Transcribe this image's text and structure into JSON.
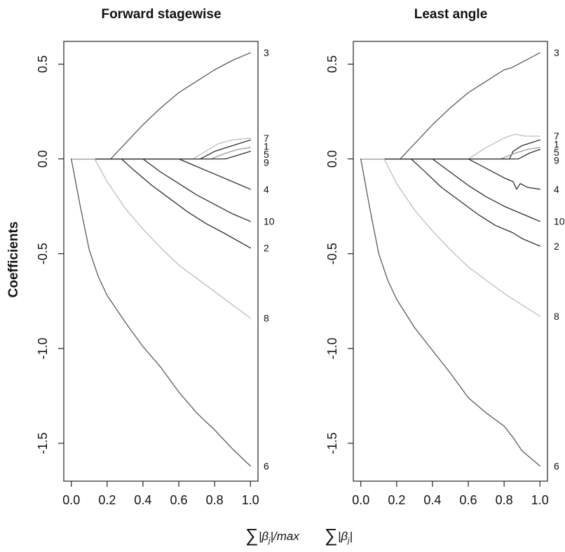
{
  "colors": {
    "dark": "#2e2e2e",
    "mid": "#5a5a5a",
    "light": "#9a9a9a",
    "lighter": "#bdbdbd"
  },
  "figure": {
    "ylabel": "Coefficients",
    "xlabel": "∑|β_j|/max ∑|β_j|"
  },
  "chart_data": [
    {
      "type": "line",
      "title": "Forward stagewise",
      "xlabel": "",
      "ylabel": "Coefficients",
      "xlim": [
        0.0,
        1.0
      ],
      "ylim": [
        -1.7,
        0.62
      ],
      "x_ticks": [
        "0.0",
        "0.2",
        "0.4",
        "0.6",
        "0.8",
        "1.0"
      ],
      "y_ticks": [
        "-1.5",
        "-1.0",
        "-0.5",
        "0.0",
        "0.5"
      ],
      "series": [
        {
          "name": "3",
          "color": "mid",
          "points": [
            [
              0,
              0
            ],
            [
              0.22,
              0
            ],
            [
              0.3,
              0.08
            ],
            [
              0.4,
              0.18
            ],
            [
              0.5,
              0.27
            ],
            [
              0.6,
              0.35
            ],
            [
              0.7,
              0.41
            ],
            [
              0.8,
              0.47
            ],
            [
              0.9,
              0.52
            ],
            [
              1.0,
              0.56
            ]
          ]
        },
        {
          "name": "7",
          "color": "lighter",
          "points": [
            [
              0,
              0
            ],
            [
              0.68,
              0
            ],
            [
              0.75,
              0.04
            ],
            [
              0.82,
              0.08
            ],
            [
              0.9,
              0.1
            ],
            [
              1.0,
              0.11
            ]
          ]
        },
        {
          "name": "1",
          "color": "dark",
          "points": [
            [
              0,
              0
            ],
            [
              0.72,
              0
            ],
            [
              0.8,
              0.04
            ],
            [
              0.9,
              0.07
            ],
            [
              1.0,
              0.1
            ]
          ]
        },
        {
          "name": "5",
          "color": "light",
          "points": [
            [
              0,
              0
            ],
            [
              0.78,
              0
            ],
            [
              0.86,
              0.03
            ],
            [
              0.93,
              0.05
            ],
            [
              1.0,
              0.06
            ]
          ]
        },
        {
          "name": "9",
          "color": "dark",
          "points": [
            [
              0,
              0
            ],
            [
              0.86,
              0
            ],
            [
              0.93,
              0.02
            ],
            [
              1.0,
              0.04
            ]
          ]
        },
        {
          "name": "4",
          "color": "dark",
          "points": [
            [
              0,
              0
            ],
            [
              0.6,
              0
            ],
            [
              0.7,
              -0.04
            ],
            [
              0.8,
              -0.08
            ],
            [
              0.9,
              -0.12
            ],
            [
              1.0,
              -0.16
            ]
          ]
        },
        {
          "name": "10",
          "color": "dark",
          "points": [
            [
              0,
              0
            ],
            [
              0.4,
              0
            ],
            [
              0.5,
              -0.07
            ],
            [
              0.6,
              -0.13
            ],
            [
              0.7,
              -0.19
            ],
            [
              0.8,
              -0.24
            ],
            [
              0.9,
              -0.29
            ],
            [
              1.0,
              -0.33
            ]
          ]
        },
        {
          "name": "2",
          "color": "dark",
          "points": [
            [
              0,
              0
            ],
            [
              0.28,
              0
            ],
            [
              0.35,
              -0.06
            ],
            [
              0.45,
              -0.14
            ],
            [
              0.55,
              -0.21
            ],
            [
              0.65,
              -0.28
            ],
            [
              0.75,
              -0.34
            ],
            [
              0.85,
              -0.39
            ],
            [
              1.0,
              -0.47
            ]
          ]
        },
        {
          "name": "8",
          "color": "lighter",
          "points": [
            [
              0,
              0
            ],
            [
              0.13,
              0
            ],
            [
              0.2,
              -0.12
            ],
            [
              0.3,
              -0.26
            ],
            [
              0.4,
              -0.37
            ],
            [
              0.5,
              -0.47
            ],
            [
              0.6,
              -0.56
            ],
            [
              0.7,
              -0.63
            ],
            [
              0.8,
              -0.7
            ],
            [
              0.9,
              -0.77
            ],
            [
              1.0,
              -0.84
            ]
          ]
        },
        {
          "name": "6",
          "color": "mid",
          "points": [
            [
              0,
              0
            ],
            [
              0.05,
              -0.25
            ],
            [
              0.1,
              -0.48
            ],
            [
              0.15,
              -0.62
            ],
            [
              0.2,
              -0.72
            ],
            [
              0.3,
              -0.86
            ],
            [
              0.4,
              -0.99
            ],
            [
              0.5,
              -1.1
            ],
            [
              0.6,
              -1.23
            ],
            [
              0.7,
              -1.34
            ],
            [
              0.8,
              -1.43
            ],
            [
              0.9,
              -1.53
            ],
            [
              1.0,
              -1.62
            ]
          ]
        }
      ]
    },
    {
      "type": "line",
      "title": "Least angle",
      "xlabel": "",
      "ylabel": "",
      "xlim": [
        0.0,
        1.0
      ],
      "ylim": [
        -1.7,
        0.62
      ],
      "x_ticks": [
        "0.0",
        "0.2",
        "0.4",
        "0.6",
        "0.8",
        "1.0"
      ],
      "y_ticks": [
        "-1.5",
        "-1.0",
        "-0.5",
        "0.0",
        "0.5"
      ],
      "series": [
        {
          "name": "3",
          "color": "mid",
          "points": [
            [
              0,
              0
            ],
            [
              0.22,
              0
            ],
            [
              0.3,
              0.08
            ],
            [
              0.4,
              0.18
            ],
            [
              0.5,
              0.27
            ],
            [
              0.6,
              0.35
            ],
            [
              0.7,
              0.41
            ],
            [
              0.8,
              0.47
            ],
            [
              0.84,
              0.48
            ],
            [
              0.9,
              0.51
            ],
            [
              1.0,
              0.56
            ]
          ]
        },
        {
          "name": "7",
          "color": "lighter",
          "points": [
            [
              0,
              0
            ],
            [
              0.6,
              0
            ],
            [
              0.7,
              0.06
            ],
            [
              0.8,
              0.11
            ],
            [
              0.86,
              0.13
            ],
            [
              0.92,
              0.12
            ],
            [
              1.0,
              0.12
            ]
          ]
        },
        {
          "name": "1",
          "color": "dark",
          "points": [
            [
              0,
              0
            ],
            [
              0.83,
              0
            ],
            [
              0.85,
              0.04
            ],
            [
              0.9,
              0.07
            ],
            [
              1.0,
              0.1
            ]
          ]
        },
        {
          "name": "5",
          "color": "light",
          "points": [
            [
              0,
              0
            ],
            [
              0.78,
              0
            ],
            [
              0.86,
              0.03
            ],
            [
              0.93,
              0.05
            ],
            [
              1.0,
              0.06
            ]
          ]
        },
        {
          "name": "9",
          "color": "dark",
          "points": [
            [
              0,
              0
            ],
            [
              0.88,
              0
            ],
            [
              0.94,
              0.03
            ],
            [
              1.0,
              0.05
            ]
          ]
        },
        {
          "name": "4",
          "color": "dark",
          "points": [
            [
              0,
              0
            ],
            [
              0.6,
              0
            ],
            [
              0.7,
              -0.05
            ],
            [
              0.8,
              -0.1
            ],
            [
              0.85,
              -0.12
            ],
            [
              0.87,
              -0.16
            ],
            [
              0.89,
              -0.13
            ],
            [
              0.93,
              -0.15
            ],
            [
              1.0,
              -0.16
            ]
          ]
        },
        {
          "name": "10",
          "color": "dark",
          "points": [
            [
              0,
              0
            ],
            [
              0.4,
              0
            ],
            [
              0.5,
              -0.07
            ],
            [
              0.6,
              -0.14
            ],
            [
              0.7,
              -0.2
            ],
            [
              0.8,
              -0.25
            ],
            [
              0.9,
              -0.29
            ],
            [
              1.0,
              -0.33
            ]
          ]
        },
        {
          "name": "2",
          "color": "dark",
          "points": [
            [
              0,
              0
            ],
            [
              0.28,
              0
            ],
            [
              0.35,
              -0.06
            ],
            [
              0.45,
              -0.15
            ],
            [
              0.55,
              -0.22
            ],
            [
              0.65,
              -0.29
            ],
            [
              0.75,
              -0.35
            ],
            [
              0.85,
              -0.39
            ],
            [
              0.9,
              -0.42
            ],
            [
              1.0,
              -0.46
            ]
          ]
        },
        {
          "name": "8",
          "color": "lighter",
          "points": [
            [
              0,
              0
            ],
            [
              0.13,
              0
            ],
            [
              0.2,
              -0.13
            ],
            [
              0.3,
              -0.27
            ],
            [
              0.4,
              -0.38
            ],
            [
              0.5,
              -0.48
            ],
            [
              0.6,
              -0.57
            ],
            [
              0.7,
              -0.64
            ],
            [
              0.8,
              -0.71
            ],
            [
              0.9,
              -0.77
            ],
            [
              1.0,
              -0.83
            ]
          ]
        },
        {
          "name": "6",
          "color": "mid",
          "points": [
            [
              0,
              0
            ],
            [
              0.05,
              -0.26
            ],
            [
              0.1,
              -0.5
            ],
            [
              0.15,
              -0.64
            ],
            [
              0.2,
              -0.74
            ],
            [
              0.3,
              -0.89
            ],
            [
              0.4,
              -1.01
            ],
            [
              0.5,
              -1.13
            ],
            [
              0.6,
              -1.26
            ],
            [
              0.7,
              -1.34
            ],
            [
              0.8,
              -1.41
            ],
            [
              0.85,
              -1.47
            ],
            [
              0.9,
              -1.54
            ],
            [
              1.0,
              -1.62
            ]
          ]
        }
      ]
    }
  ]
}
